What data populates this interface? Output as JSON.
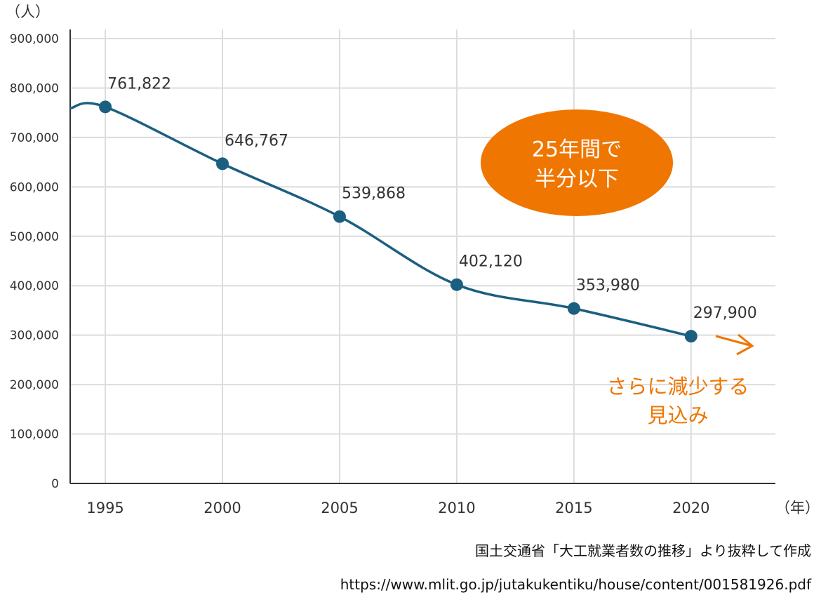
{
  "chart_data": {
    "type": "line",
    "y_unit_label": "（人）",
    "x_unit_label": "（年）",
    "x": [
      1995,
      2000,
      2005,
      2010,
      2015,
      2020
    ],
    "values": [
      761822,
      646767,
      539868,
      402120,
      353980,
      297900
    ],
    "data_labels": [
      "761,822",
      "646,767",
      "539,868",
      "402,120",
      "353,980",
      "297,900"
    ],
    "x_ticks": [
      "1995",
      "2000",
      "2005",
      "2010",
      "2015",
      "2020"
    ],
    "y_ticks": [
      "0",
      "100,000",
      "200,000",
      "300,000",
      "400,000",
      "500,000",
      "600,000",
      "700,000",
      "800,000",
      "900,000"
    ],
    "ylim": [
      0,
      900000
    ],
    "xlim": [
      1993.5,
      2023.6
    ],
    "grid": true,
    "line_color": "#1b5f80",
    "annotations": {
      "bubble_lines": [
        "25年間で",
        "半分以下"
      ],
      "bubble_color": "#ef7600",
      "projection_lines": [
        "さらに減少する",
        "見込み"
      ],
      "projection_color": "#ef7600"
    }
  },
  "source": {
    "line1": "国土交通省「大工就業者数の推移」より抜粋して作成",
    "line2": "https://www.mlit.go.jp/jutakukentiku/house/content/001581926.pdf"
  }
}
